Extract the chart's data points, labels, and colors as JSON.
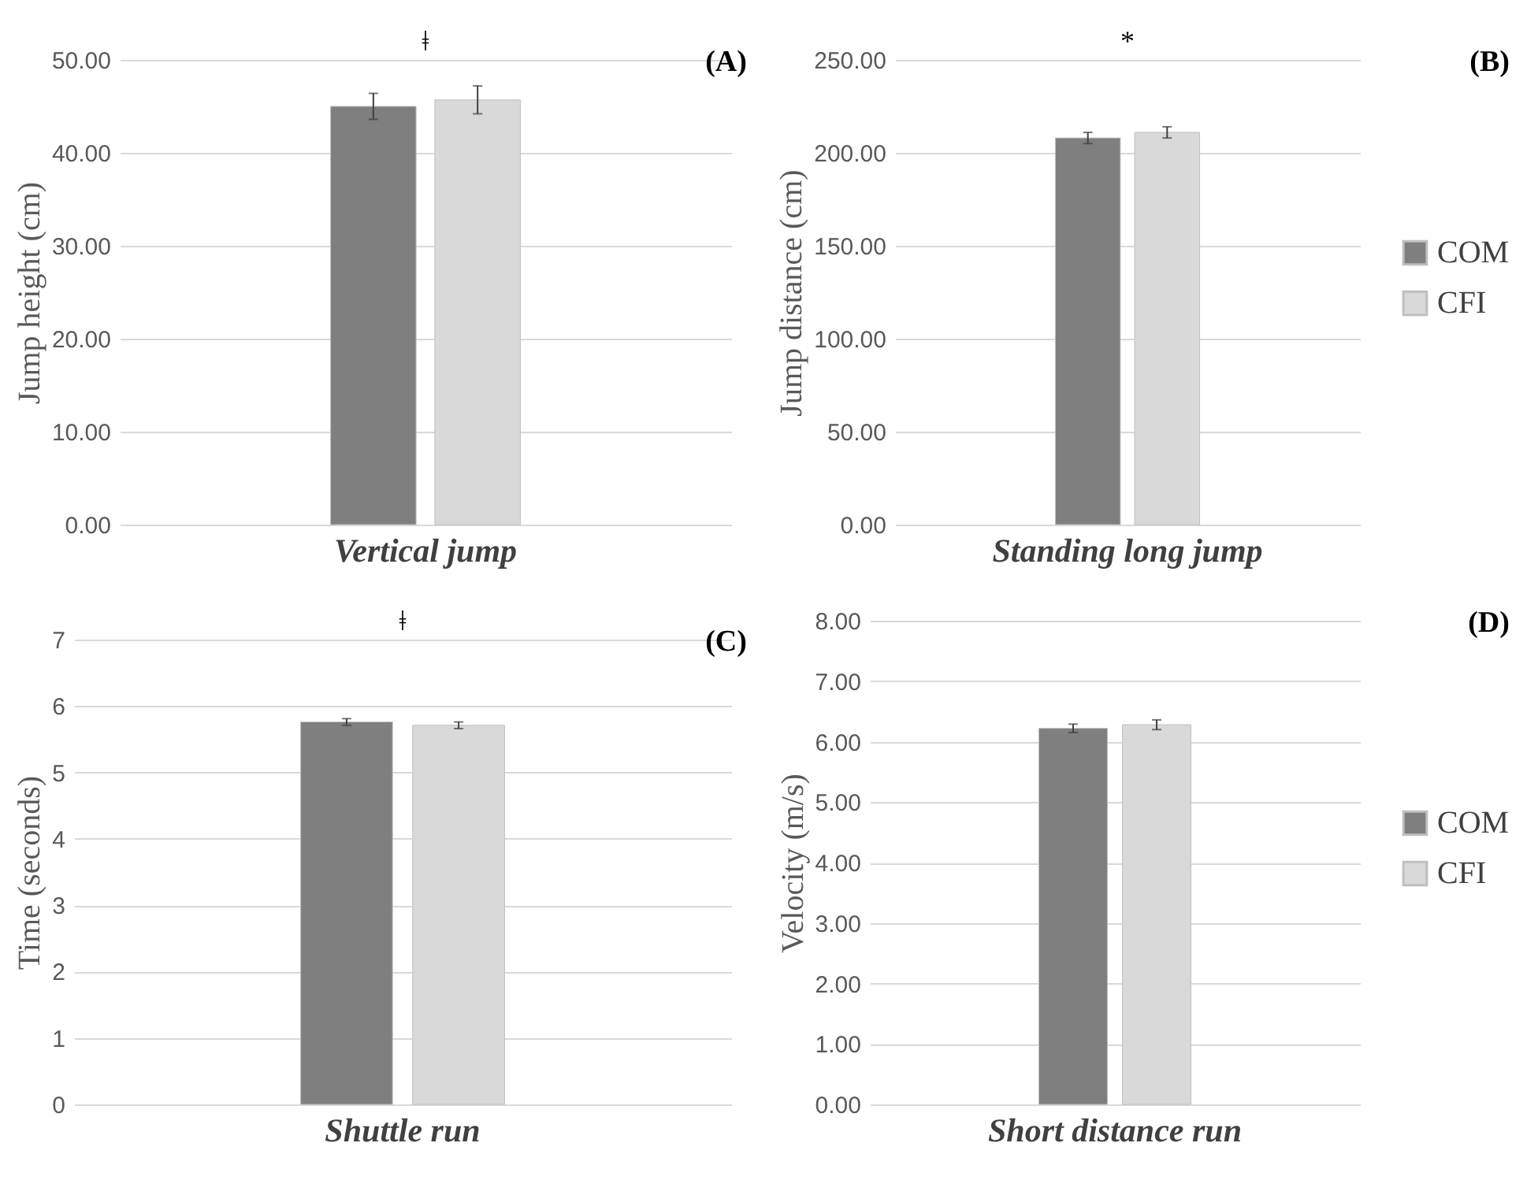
{
  "chart_data": [
    {
      "type": "bar",
      "categories": [
        "Vertical jump"
      ],
      "ylabel": "Jump height (cm)",
      "ylim": [
        0,
        50
      ],
      "yticks": [
        {
          "value": 0,
          "label": "0.00"
        },
        {
          "value": 10,
          "label": "10.00"
        },
        {
          "value": 20,
          "label": "20.00"
        },
        {
          "value": 30,
          "label": "30.00"
        },
        {
          "value": 40,
          "label": "40.00"
        },
        {
          "value": 50,
          "label": "50.00"
        }
      ],
      "grid": "y",
      "legend": false,
      "series": [
        {
          "color": "#7f7f7f",
          "values": [
            45.0
          ],
          "errors": [
            1.4
          ]
        },
        {
          "color": "#d9d9d9",
          "values": [
            45.7
          ],
          "errors": [
            1.5
          ]
        }
      ],
      "annotations": [
        "(A)",
        "ǂ"
      ]
    },
    {
      "type": "bar",
      "categories": [
        "Standing long jump"
      ],
      "ylabel": "Jump distance (cm)",
      "ylim": [
        0,
        250
      ],
      "yticks": [
        {
          "value": 0,
          "label": "0.00"
        },
        {
          "value": 50,
          "label": "50.00"
        },
        {
          "value": 100,
          "label": "100.00"
        },
        {
          "value": 150,
          "label": "150.00"
        },
        {
          "value": 200,
          "label": "200.00"
        },
        {
          "value": 250,
          "label": "250.00"
        }
      ],
      "grid": "y",
      "legend": "right",
      "series": [
        {
          "name": "COM",
          "color": "#7f7f7f",
          "values": [
            208
          ],
          "errors": [
            3
          ]
        },
        {
          "name": "CFI",
          "color": "#d9d9d9",
          "values": [
            211
          ],
          "errors": [
            3
          ]
        }
      ],
      "annotations": [
        "(B)",
        "*"
      ]
    },
    {
      "type": "bar",
      "categories": [
        "Shuttle run"
      ],
      "ylabel": "Time (seconds)",
      "ylim": [
        0,
        7
      ],
      "yticks": [
        0,
        1,
        2,
        3,
        4,
        5,
        6,
        7
      ],
      "grid": "y",
      "legend": false,
      "series": [
        {
          "color": "#7f7f7f",
          "values": [
            5.76
          ],
          "errors": [
            0.05
          ]
        },
        {
          "color": "#d9d9d9",
          "values": [
            5.71
          ],
          "errors": [
            0.05
          ]
        }
      ],
      "annotations": [
        "(C)",
        "ǂ"
      ]
    },
    {
      "type": "bar",
      "categories": [
        "Short distance run"
      ],
      "ylabel": "Velocity (m/s)",
      "ylim": [
        0,
        8
      ],
      "yticks": [
        {
          "value": 0,
          "label": "0.00"
        },
        {
          "value": 1,
          "label": "1.00"
        },
        {
          "value": 2,
          "label": "2.00"
        },
        {
          "value": 3,
          "label": "3.00"
        },
        {
          "value": 4,
          "label": "4.00"
        },
        {
          "value": 5,
          "label": "5.00"
        },
        {
          "value": 6,
          "label": "6.00"
        },
        {
          "value": 7,
          "label": "7.00"
        },
        {
          "value": 8,
          "label": "8.00"
        }
      ],
      "grid": "y",
      "legend": "right",
      "series": [
        {
          "name": "COM",
          "color": "#7f7f7f",
          "values": [
            6.22
          ],
          "errors": [
            0.07
          ]
        },
        {
          "name": "CFI",
          "color": "#d9d9d9",
          "values": [
            6.28
          ],
          "errors": [
            0.08
          ]
        }
      ],
      "annotations": [
        "(D)"
      ]
    }
  ]
}
